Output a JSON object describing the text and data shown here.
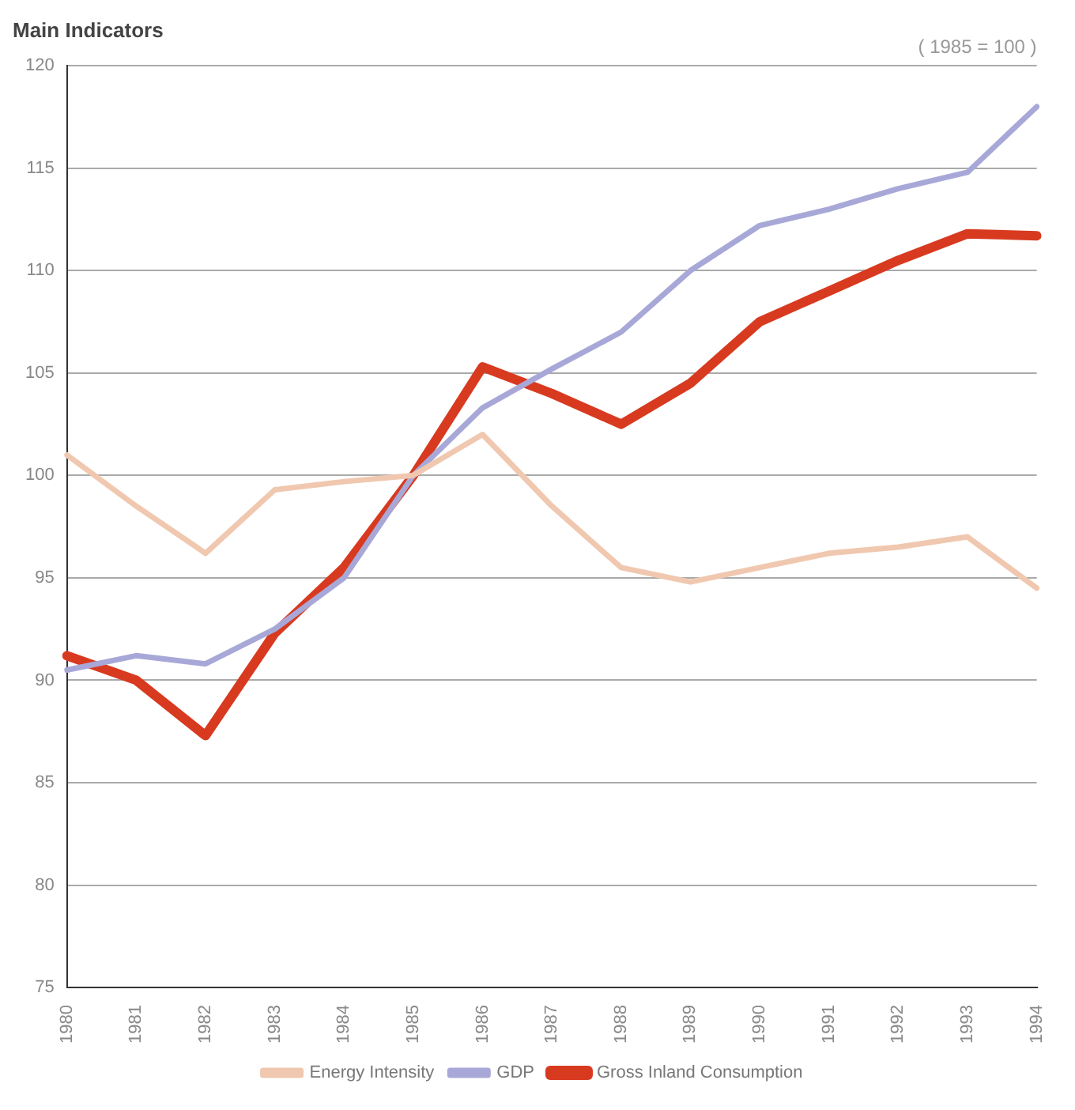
{
  "chart_data": {
    "type": "line",
    "title": "Main Indicators",
    "annotations": [
      "( 1985 = 100 )"
    ],
    "categories": [
      "1980",
      "1981",
      "1982",
      "1983",
      "1984",
      "1985",
      "1986",
      "1987",
      "1988",
      "1989",
      "1990",
      "1991",
      "1992",
      "1993",
      "1994"
    ],
    "series": [
      {
        "name": "Energy Intensity",
        "color": "#f0c8b0",
        "values": [
          101,
          98.5,
          96.2,
          99.3,
          99.7,
          100,
          102,
          98.5,
          95.5,
          94.8,
          95.5,
          96.2,
          96.5,
          97,
          94.5
        ]
      },
      {
        "name": "GDP",
        "color": "#a8a8d8",
        "values": [
          90.5,
          91.2,
          90.8,
          92.5,
          95,
          100,
          103.3,
          105.2,
          107,
          110,
          112.2,
          113,
          114,
          114.8,
          118
        ]
      },
      {
        "name": "Gross Inland Consumption",
        "color": "#d83a20",
        "values": [
          91.2,
          90,
          87.3,
          92.3,
          95.5,
          100,
          105.3,
          104,
          102.5,
          104.5,
          107.5,
          109,
          110.5,
          111.8,
          111.7
        ]
      }
    ],
    "ylim": [
      75,
      120
    ],
    "yticks": [
      75,
      80,
      85,
      90,
      95,
      100,
      105,
      110,
      115,
      120
    ],
    "grid": "y",
    "legend": "bottom",
    "marker": "none",
    "line_style": "solid"
  }
}
